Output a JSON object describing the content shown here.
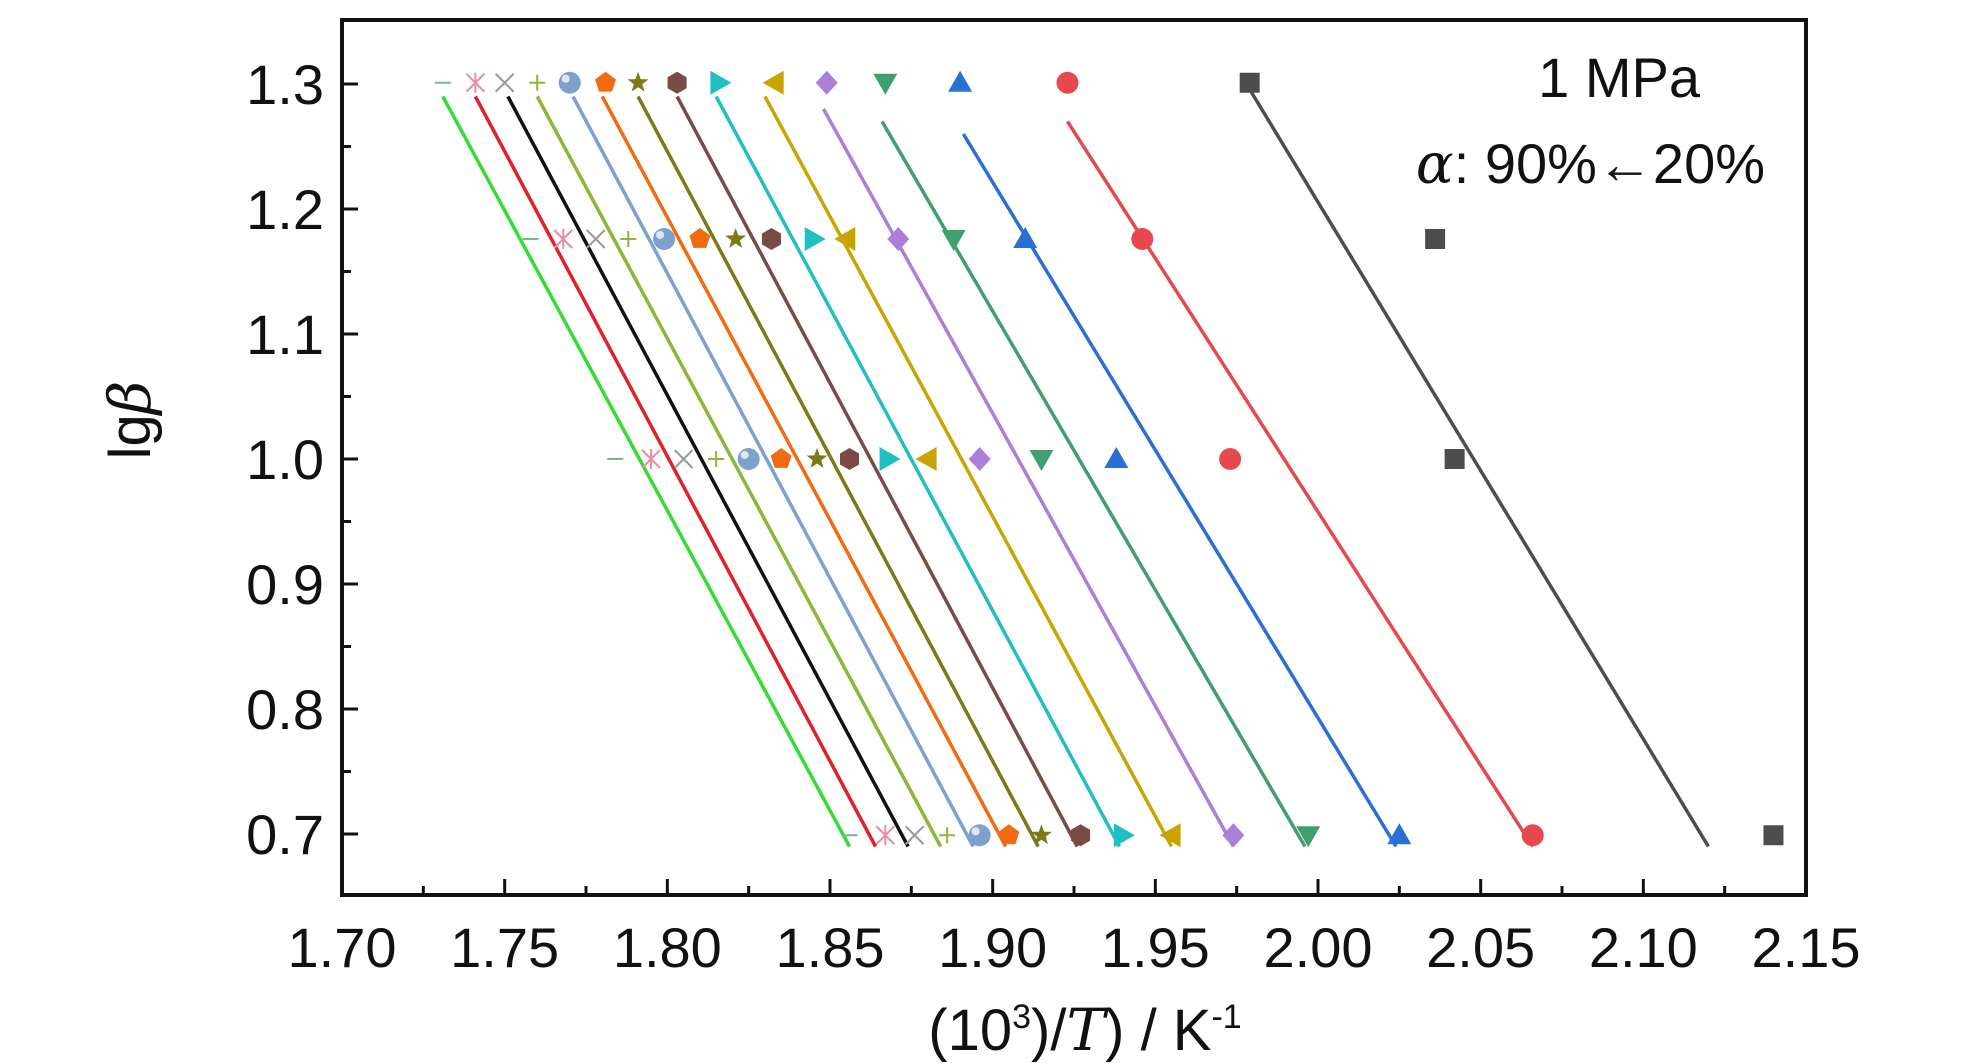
{
  "chart_data": {
    "type": "scatter",
    "title": "",
    "xlabel": {
      "prefix": "(10",
      "sup": "3",
      "mid": ")/",
      "ital": "T",
      "suffix": ") / K",
      "sup2": "-1"
    },
    "ylabel": {
      "prefix": "lg",
      "ital": "β"
    },
    "xlim": [
      1.7,
      2.15
    ],
    "ylim": [
      0.65,
      1.35
    ],
    "xticks": [
      "1.70",
      "1.75",
      "1.80",
      "1.85",
      "1.90",
      "1.95",
      "2.00",
      "2.05",
      "2.10",
      "2.15"
    ],
    "yticks": [
      "0.7",
      "0.8",
      "0.9",
      "1.0",
      "1.1",
      "1.2",
      "1.3"
    ],
    "annotation_pressure": "1 MPa",
    "annotation_alpha_symbol": "α",
    "annotation_alpha_text": ": 90%←20%",
    "y_levels": [
      0.699,
      1.0,
      1.176,
      1.301
    ],
    "series": [
      {
        "marker": "square",
        "color": "#4d4d4d",
        "x": [
          2.14,
          2.042,
          2.036,
          1.979
        ],
        "fit": [
          [
            2.12,
            0.69
          ],
          [
            1.978,
            1.3
          ]
        ]
      },
      {
        "marker": "circle",
        "color": "#e6484e",
        "x": [
          2.066,
          1.973,
          1.946,
          1.923
        ],
        "fit": [
          [
            2.066,
            0.69
          ],
          [
            1.923,
            1.27
          ]
        ]
      },
      {
        "marker": "triangle-up",
        "color": "#2a6fd4",
        "x": [
          2.025,
          1.938,
          1.91,
          1.89
        ],
        "fit": [
          [
            2.024,
            0.69
          ],
          [
            1.891,
            1.26
          ]
        ]
      },
      {
        "marker": "triangle-down",
        "color": "#3f9f6e",
        "x": [
          1.997,
          1.915,
          1.888,
          1.867
        ],
        "fit": [
          [
            1.996,
            0.69
          ],
          [
            1.866,
            1.27
          ]
        ]
      },
      {
        "marker": "diamond",
        "color": "#a97fd8",
        "x": [
          1.974,
          1.896,
          1.871,
          1.849
        ],
        "fit": [
          [
            1.974,
            0.69
          ],
          [
            1.848,
            1.28
          ]
        ]
      },
      {
        "marker": "triangle-left",
        "color": "#c9a400",
        "x": [
          1.955,
          1.88,
          1.855,
          1.833
        ],
        "fit": [
          [
            1.955,
            0.69
          ],
          [
            1.83,
            1.29
          ]
        ]
      },
      {
        "marker": "triangle-right",
        "color": "#1fbfc4",
        "x": [
          1.94,
          1.868,
          1.845,
          1.816
        ],
        "fit": [
          [
            1.939,
            0.69
          ],
          [
            1.815,
            1.29
          ]
        ]
      },
      {
        "marker": "hexagon",
        "color": "#7a4a44",
        "x": [
          1.927,
          1.856,
          1.832,
          1.803
        ],
        "fit": [
          [
            1.926,
            0.69
          ],
          [
            1.803,
            1.29
          ]
        ]
      },
      {
        "marker": "star",
        "color": "#7a7a18",
        "x": [
          1.915,
          1.846,
          1.821,
          1.791
        ],
        "fit": [
          [
            1.914,
            0.69
          ],
          [
            1.791,
            1.29
          ]
        ]
      },
      {
        "marker": "pentagon",
        "color": "#f26a12",
        "x": [
          1.905,
          1.835,
          1.81,
          1.781
        ],
        "fit": [
          [
            1.904,
            0.69
          ],
          [
            1.78,
            1.29
          ]
        ]
      },
      {
        "marker": "sphere",
        "color": "#7ea0cc",
        "x": [
          1.896,
          1.825,
          1.799,
          1.77
        ],
        "fit": [
          [
            1.894,
            0.69
          ],
          [
            1.771,
            1.29
          ]
        ]
      },
      {
        "marker": "plus",
        "color": "#88b838",
        "x": [
          1.886,
          1.815,
          1.788,
          1.76
        ],
        "fit": [
          [
            1.884,
            0.69
          ],
          [
            1.76,
            1.29
          ]
        ]
      },
      {
        "marker": "cross",
        "color": "#999999",
        "x": [
          1.876,
          1.805,
          1.778,
          1.75
        ],
        "fit": [
          [
            1.874,
            0.69
          ],
          [
            1.751,
            1.29
          ]
        ]
      },
      {
        "marker": "asterisk",
        "color": "#e88ea0",
        "x": [
          1.867,
          1.795,
          1.768,
          1.741
        ],
        "fit": [
          [
            1.864,
            0.69
          ],
          [
            1.741,
            1.29
          ]
        ]
      },
      {
        "marker": "dash",
        "color": "#6bbf8a",
        "x": [
          1.856,
          1.784,
          1.758,
          1.731
        ],
        "fit": [
          [
            1.856,
            0.69
          ],
          [
            1.731,
            1.29
          ]
        ]
      }
    ],
    "fit_colors_override": [
      "#4d4d4d",
      "#e6484e",
      "#2a6fd4",
      "#3f9f6e",
      "#a97fd8",
      "#c9a400",
      "#1fbfc4",
      "#7a4a44",
      "#7a7a18",
      "#f26a12",
      "#7ea0cc",
      "#88b838",
      "#111111",
      "#e0202a",
      "#33dd33"
    ]
  }
}
